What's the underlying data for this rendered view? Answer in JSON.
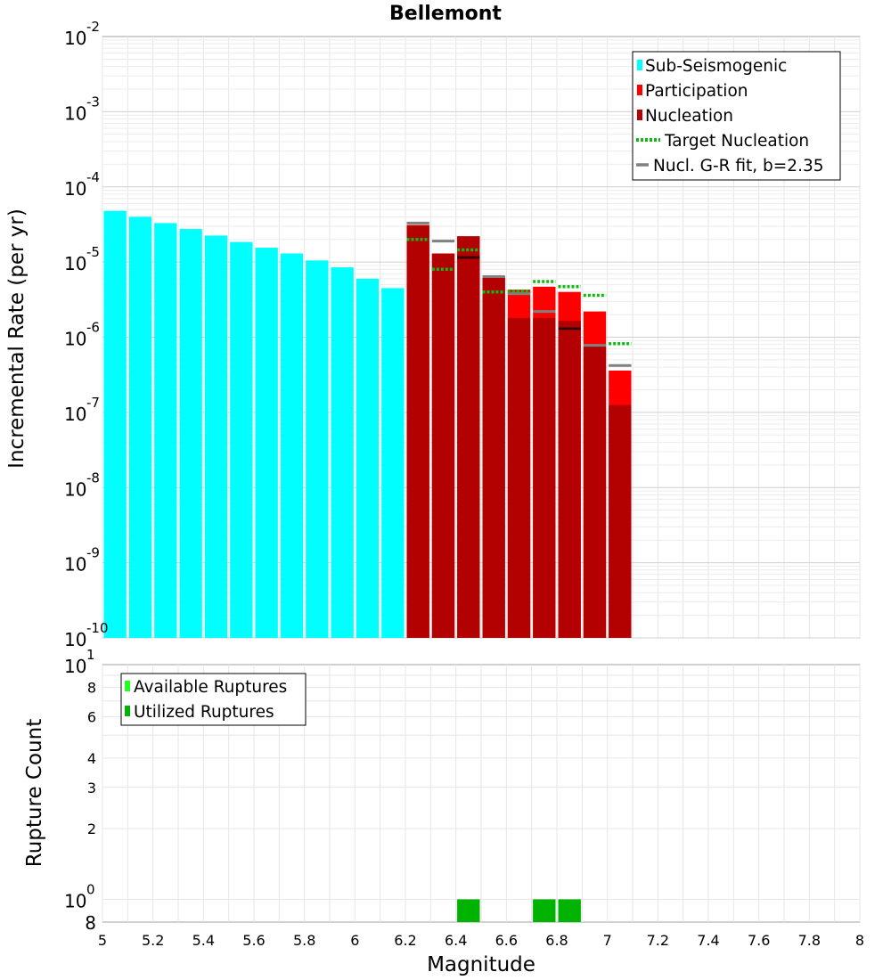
{
  "chart_data": [
    {
      "type": "bar",
      "title": "Bellemont",
      "xlabel": "",
      "ylabel": "Incremental Rate (per yr)",
      "xlim": [
        5,
        8
      ],
      "ylim": [
        1e-10,
        0.01
      ],
      "yscale": "log",
      "y_tick_base": "10",
      "y_tick_exponents": [
        "-10",
        "-9",
        "-8",
        "-7",
        "-6",
        "-5",
        "-4",
        "-3",
        "-2"
      ],
      "grid": true,
      "legend_position": "top-right",
      "series": [
        {
          "name": "Sub-Seismogenic",
          "color": "#00ffff",
          "kind": "bar",
          "x": [
            5.05,
            5.15,
            5.25,
            5.35,
            5.45,
            5.55,
            5.65,
            5.75,
            5.85,
            5.95,
            6.05,
            6.15
          ],
          "values": [
            4.8e-05,
            4e-05,
            3.3e-05,
            2.75e-05,
            2.25e-05,
            1.85e-05,
            1.55e-05,
            1.3e-05,
            1.05e-05,
            8.5e-06,
            6e-06,
            4.5e-06
          ]
        },
        {
          "name": "Participation",
          "color": "#ff0000",
          "kind": "bar",
          "x": [
            6.25,
            6.35,
            6.45,
            6.55,
            6.65,
            6.75,
            6.85,
            6.95,
            7.05
          ],
          "values": [
            3.1e-05,
            1.3e-05,
            2.2e-05,
            6.5e-06,
            4.3e-06,
            4.7e-06,
            4e-06,
            2.2e-06,
            3.6e-07
          ]
        },
        {
          "name": "Nucleation",
          "color": "#b30000",
          "kind": "bar",
          "x": [
            6.25,
            6.35,
            6.45,
            6.55,
            6.65,
            6.75,
            6.85,
            6.95,
            7.05
          ],
          "values": [
            3.1e-05,
            1.3e-05,
            2.2e-05,
            6.3e-06,
            1.8e-06,
            1.8e-06,
            1.65e-06,
            7.5e-07,
            1.25e-07
          ]
        },
        {
          "name": "Target Nucleation",
          "color": "#11bb11",
          "kind": "dotted-step",
          "x": [
            6.25,
            6.35,
            6.45,
            6.55,
            6.65,
            6.75,
            6.85,
            6.95,
            7.05
          ],
          "values": [
            2e-05,
            8e-06,
            1.45e-05,
            4e-06,
            4.1e-06,
            5.5e-06,
            4.7e-06,
            3.6e-06,
            8.2e-07
          ]
        },
        {
          "name": "Nucl. G-R fit, b=2.35",
          "color": "#808080",
          "kind": "solid-step",
          "x": [
            6.25,
            6.35,
            6.45,
            6.55,
            6.65,
            6.75,
            6.85,
            6.95,
            7.05
          ],
          "values": [
            3.3e-05,
            1.9e-05,
            1.15e-05,
            6.4e-06,
            3.8e-06,
            2.2e-06,
            1.3e-06,
            7.8e-07,
            4.2e-07
          ]
        }
      ]
    },
    {
      "type": "bar",
      "title": "",
      "xlabel": "Magnitude",
      "ylabel": "Rupture Count",
      "xlim": [
        5,
        8
      ],
      "ylim": [
        0.8,
        10
      ],
      "yscale": "log",
      "x_ticks": [
        "5",
        "5.2",
        "5.4",
        "5.6",
        "5.8",
        "6",
        "6.2",
        "6.4",
        "6.6",
        "6.8",
        "7",
        "7.2",
        "7.4",
        "7.6",
        "7.8",
        "8"
      ],
      "y_minor_ticks": [
        "8",
        "6",
        "4",
        "3",
        "2",
        "8"
      ],
      "y_tick_base": "10",
      "y_tick_exponents": [
        "1",
        "0"
      ],
      "grid": true,
      "legend_position": "top-left",
      "series": [
        {
          "name": "Available Ruptures",
          "color": "#22ff22",
          "x": [
            6.45,
            6.75,
            6.85
          ],
          "values": [
            1,
            1,
            1
          ]
        },
        {
          "name": "Utilized Ruptures",
          "color": "#00b300",
          "x": [
            6.45,
            6.75,
            6.85
          ],
          "values": [
            1,
            1,
            1
          ]
        }
      ]
    }
  ]
}
